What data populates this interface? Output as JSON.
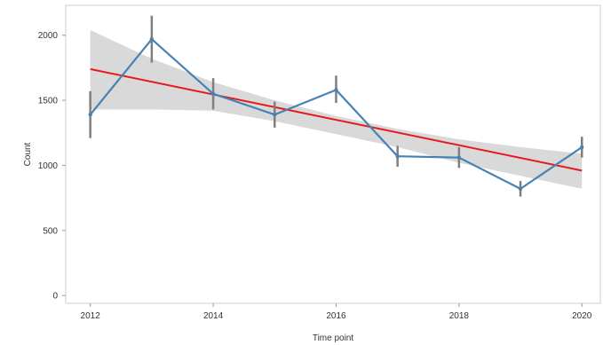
{
  "chart_data": {
    "type": "line",
    "title": "",
    "xlabel": "Time point",
    "ylabel": "Count",
    "xlim": [
      2011.6,
      2020.3
    ],
    "ylim": [
      -60,
      2230
    ],
    "x_ticks": [
      2012,
      2014,
      2016,
      2018,
      2020
    ],
    "y_ticks": [
      0,
      500,
      1000,
      1500,
      2000
    ],
    "grid": false,
    "legend": "none",
    "series": [
      {
        "type": "line_with_errorbars",
        "color": "#4682b4",
        "points": [
          {
            "x": 2012,
            "y": 1390,
            "low": 1210,
            "high": 1570
          },
          {
            "x": 2013,
            "y": 1970,
            "low": 1790,
            "high": 2150
          },
          {
            "x": 2014,
            "y": 1550,
            "low": 1430,
            "high": 1670
          },
          {
            "x": 2015,
            "y": 1390,
            "low": 1290,
            "high": 1490
          },
          {
            "x": 2016,
            "y": 1580,
            "low": 1480,
            "high": 1690
          },
          {
            "x": 2017,
            "y": 1070,
            "low": 990,
            "high": 1150
          },
          {
            "x": 2018,
            "y": 1060,
            "low": 980,
            "high": 1140
          },
          {
            "x": 2019,
            "y": 820,
            "low": 760,
            "high": 880
          },
          {
            "x": 2020,
            "y": 1140,
            "low": 1060,
            "high": 1220
          }
        ]
      },
      {
        "type": "regression",
        "color": "#e41a1c",
        "x": [
          2012,
          2020
        ],
        "y": [
          1740,
          960
        ]
      }
    ],
    "confidence_band": {
      "color": "#d9d9d9",
      "x": [
        2012,
        2013,
        2014,
        2015,
        2016,
        2017,
        2018,
        2019,
        2020
      ],
      "lower": [
        1430,
        1430,
        1420,
        1340,
        1240,
        1140,
        1020,
        920,
        820
      ],
      "upper": [
        2040,
        1820,
        1640,
        1500,
        1380,
        1280,
        1200,
        1140,
        1090
      ]
    },
    "errorbar_color": "#7f7f7f"
  }
}
